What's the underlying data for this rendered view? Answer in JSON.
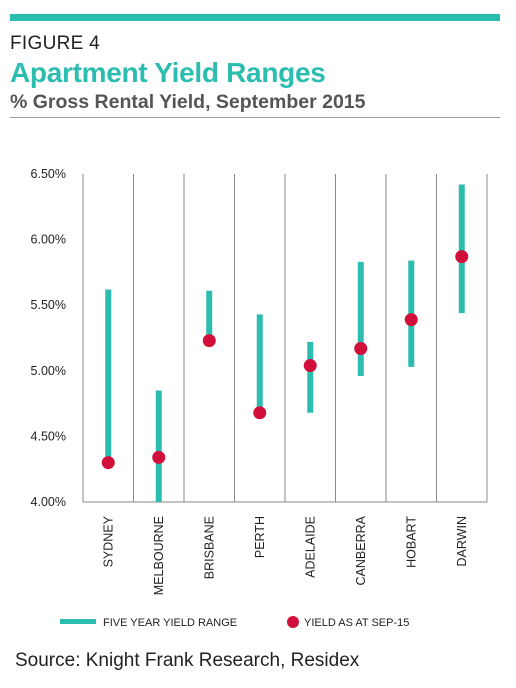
{
  "header": {
    "figure_label": "FIGURE 4",
    "title": "Apartment Yield Ranges",
    "subtitle": "% Gross Rental Yield, September 2015"
  },
  "legend": {
    "range_label": "FIVE YEAR YIELD RANGE",
    "point_label": "YIELD AS AT SEP-15"
  },
  "source": "Source: Knight Frank Research, Residex",
  "colors": {
    "range": "#2bbdb0",
    "point": "#d0103a",
    "grid": "#8a8a8a",
    "accent": "#2bbdb0"
  },
  "chart_data": {
    "type": "scatter",
    "categories": [
      "SYDNEY",
      "MELBOURNE",
      "BRISBANE",
      "PERTH",
      "ADELAIDE",
      "CANBERRA",
      "HOBART",
      "DARWIN"
    ],
    "ranges": [
      [
        4.3,
        5.62
      ],
      [
        4.0,
        4.85
      ],
      [
        5.23,
        5.61
      ],
      [
        4.68,
        5.43
      ],
      [
        4.68,
        5.22
      ],
      [
        4.96,
        5.83
      ],
      [
        5.03,
        5.84
      ],
      [
        5.44,
        6.42
      ]
    ],
    "values": [
      4.3,
      4.34,
      5.23,
      4.68,
      5.04,
      5.17,
      5.39,
      5.87
    ],
    "yticks": [
      "4.00%",
      "4.50%",
      "5.00%",
      "5.50%",
      "6.00%",
      "6.50%"
    ],
    "ylim": [
      4.0,
      6.5
    ],
    "grid": "vertical"
  }
}
